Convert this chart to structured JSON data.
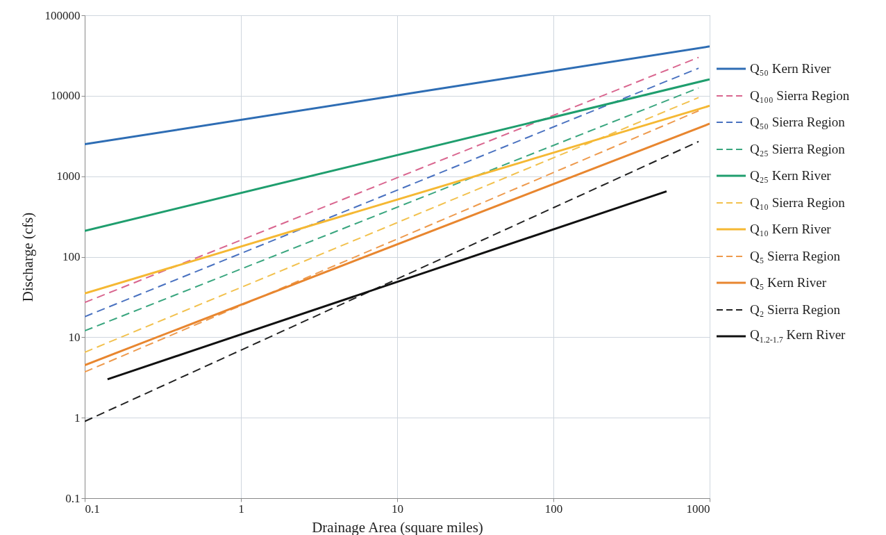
{
  "chart_data": {
    "type": "line",
    "xlabel": "Drainage Area (square miles)",
    "ylabel": "Discharge (cfs)",
    "log": "xy",
    "grid": true,
    "legend": "right",
    "xlim": [
      0.1,
      1000
    ],
    "xticks": [
      0.1,
      1,
      10,
      100,
      1000
    ],
    "ylim": [
      0.1,
      100000
    ],
    "yticks": [
      0.1,
      1,
      10,
      100,
      1000,
      10000,
      100000
    ],
    "series": [
      {
        "name": "Q₅₀ Kern River",
        "color": "#2e6db4",
        "line_style": "solid",
        "x": [
          0.1,
          10,
          1000
        ],
        "values": [
          2500,
          10100,
          41000
        ]
      },
      {
        "name": "Q₁₀₀ Sierra Region",
        "color": "#d9668f",
        "line_style": "dashed",
        "x": [
          0.1,
          850
        ],
        "values": [
          27,
          30000
        ]
      },
      {
        "name": "Q₅₀ Sierra Region",
        "color": "#4a72c0",
        "line_style": "dashed",
        "x": [
          0.1,
          850
        ],
        "values": [
          18,
          22000
        ]
      },
      {
        "name": "Q₂₅ Sierra Region",
        "color": "#3aa67f",
        "line_style": "dashed",
        "x": [
          0.1,
          850
        ],
        "values": [
          12,
          12500
        ]
      },
      {
        "name": "Q₂₅ Kern River",
        "color": "#1f9e6e",
        "line_style": "solid",
        "x": [
          0.1,
          1000
        ],
        "values": [
          210,
          16000
        ]
      },
      {
        "name": "Q₁₀ Sierra Region",
        "color": "#f2c14e",
        "line_style": "dashed",
        "x": [
          0.1,
          850
        ],
        "values": [
          6.5,
          9500
        ]
      },
      {
        "name": "Q₁₀ Kern River",
        "color": "#f5b833",
        "line_style": "solid",
        "x": [
          0.1,
          1000
        ],
        "values": [
          35,
          7500
        ]
      },
      {
        "name": "Q₅ Sierra Region",
        "color": "#ee9a4d",
        "line_style": "dashed",
        "x": [
          0.1,
          850
        ],
        "values": [
          3.7,
          6500
        ]
      },
      {
        "name": "Q₅ Kern River",
        "color": "#e8862f",
        "line_style": "solid",
        "x": [
          0.1,
          1000
        ],
        "values": [
          4.5,
          4500
        ]
      },
      {
        "name": "Q₂ Sierra Region",
        "color": "#222222",
        "line_style": "dashed",
        "x": [
          0.1,
          850
        ],
        "values": [
          0.9,
          2700
        ]
      },
      {
        "name": "Q$_{1.2-1.7}$ Kern River",
        "color": "#111111",
        "line_style": "solid",
        "x": [
          0.14,
          530
        ],
        "values": [
          3,
          650
        ]
      }
    ]
  }
}
